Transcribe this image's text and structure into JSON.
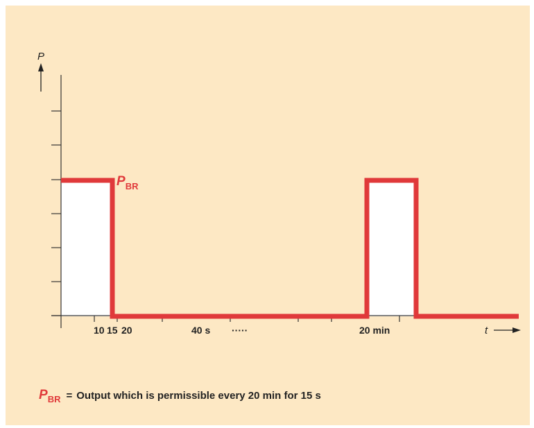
{
  "chart_data": {
    "type": "line",
    "ylabel": "P",
    "xlabel": "t",
    "x_tick_labels": [
      "10",
      "15",
      "20",
      "40 s",
      "·····",
      "20 min"
    ],
    "series": [
      {
        "name_main": "P",
        "name_sub": "BR",
        "segments": [
          {
            "from": "0",
            "to": "15 s",
            "level": "P_BR"
          },
          {
            "from": "15 s",
            "to": "20 min",
            "level": 0
          },
          {
            "from": "20 min",
            "to": "20 min + 15 s",
            "level": "P_BR"
          },
          {
            "from": "20 min + 15 s",
            "to": "end",
            "level": 0
          }
        ]
      }
    ],
    "colors": {
      "series": "#e0393a",
      "fill": "#ffffff",
      "background": "#fde8c4",
      "axis": "#333333"
    }
  },
  "caption": {
    "symbol_main": "P",
    "symbol_sub": "BR",
    "equals": "=",
    "text": "Output which is permissible every 20 min for 15 s"
  }
}
